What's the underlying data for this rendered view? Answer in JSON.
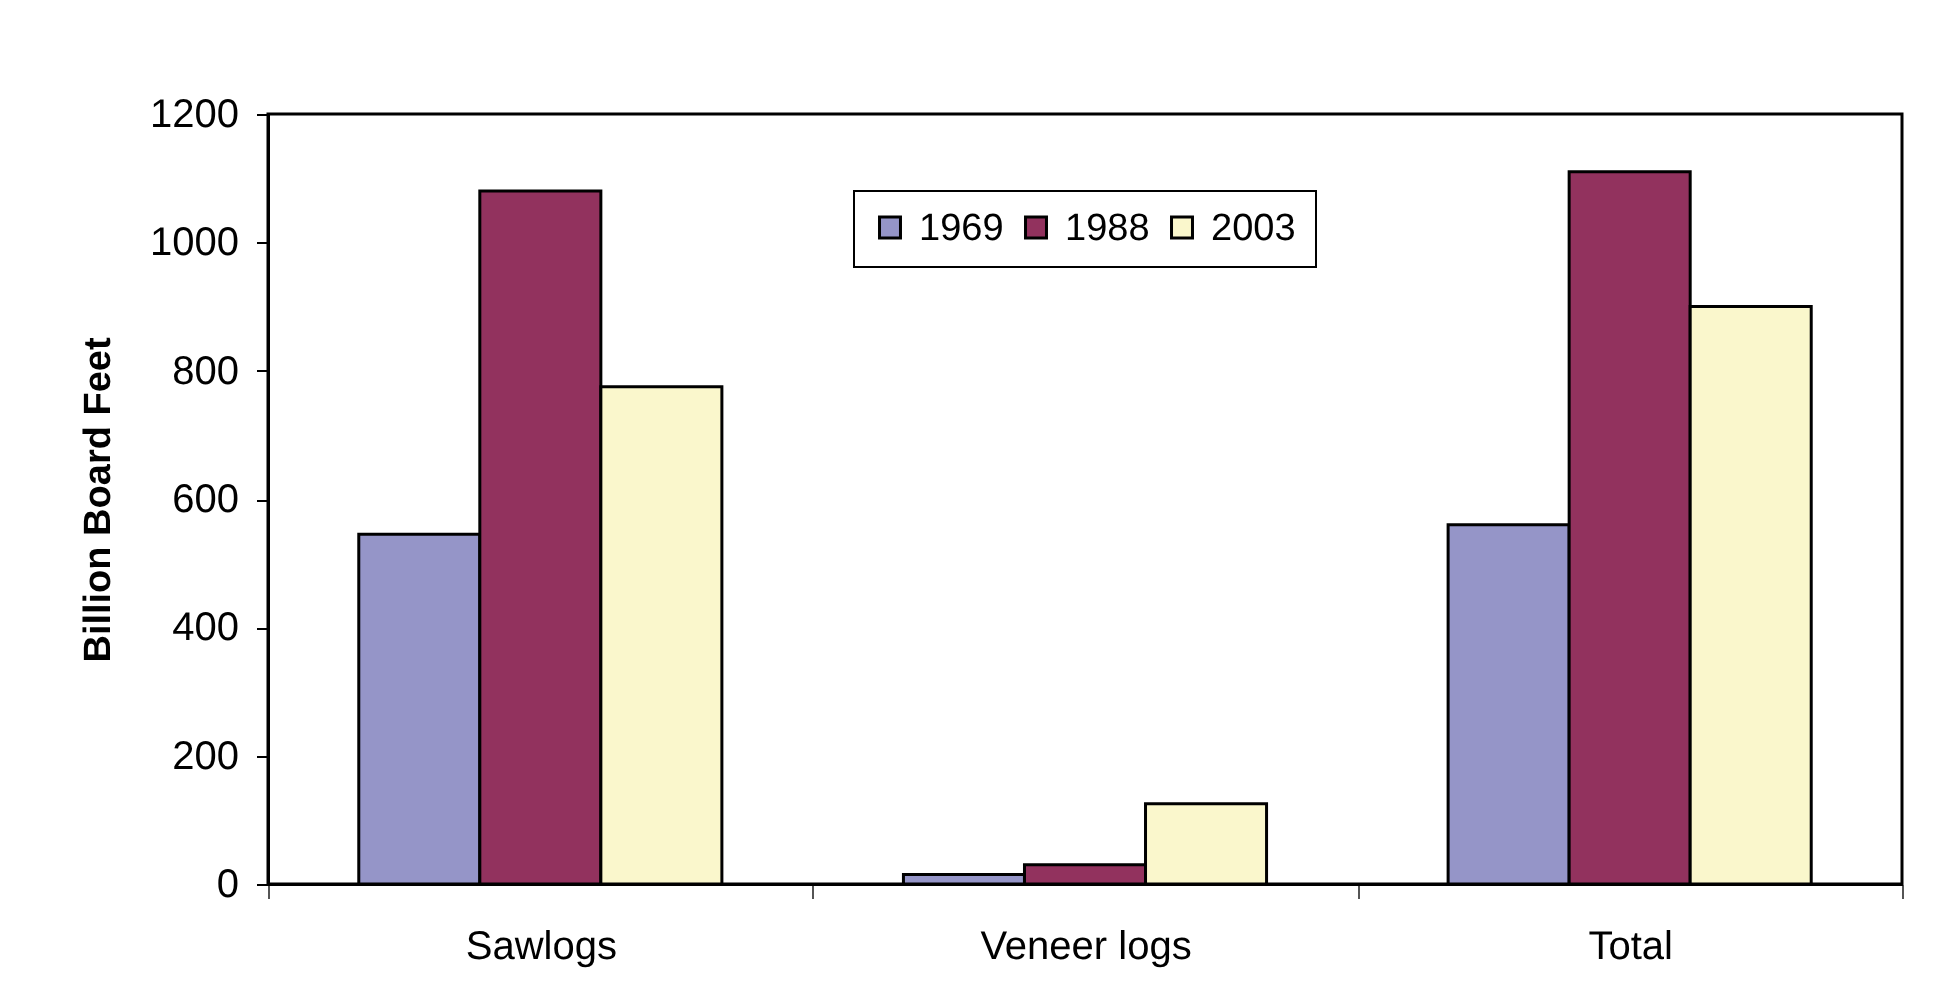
{
  "chart_data": {
    "type": "bar",
    "ylabel": "Billion Board Feet",
    "categories": [
      "Sawlogs",
      "Veneer logs",
      "Total"
    ],
    "series": [
      {
        "name": "1969",
        "color": "#9595c8",
        "values": [
          545,
          15,
          560
        ]
      },
      {
        "name": "1988",
        "color": "#92325e",
        "values": [
          1080,
          30,
          1110
        ]
      },
      {
        "name": "2003",
        "color": "#faf7cc",
        "values": [
          775,
          125,
          900
        ]
      }
    ],
    "ylim": [
      0,
      1200
    ],
    "yticks": [
      0,
      200,
      400,
      600,
      800,
      1000,
      1200
    ],
    "legend": "top"
  }
}
